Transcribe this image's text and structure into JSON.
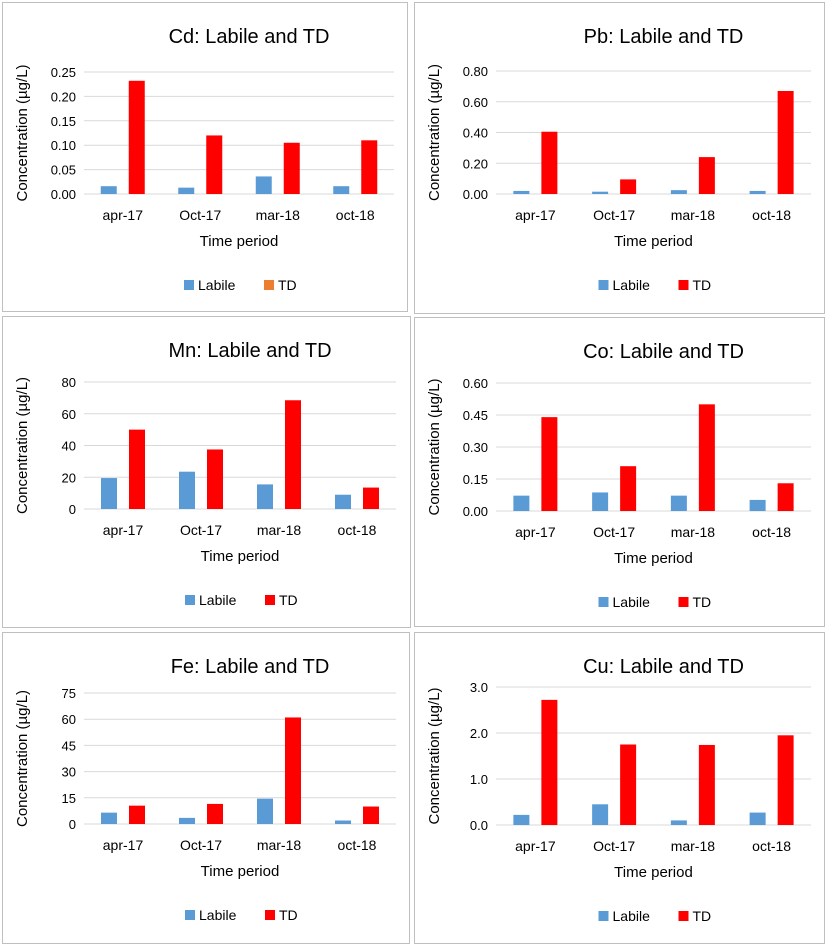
{
  "chart_data": [
    {
      "type": "bar",
      "title": "Cd: Labile and TD",
      "categories": [
        "apr-17",
        "Oct-17",
        "mar-18",
        "oct-18"
      ],
      "series": [
        {
          "name": "Labile",
          "values": [
            0.016,
            0.013,
            0.036,
            0.016
          ]
        },
        {
          "name": "TD",
          "values": [
            0.232,
            0.12,
            0.105,
            0.11
          ]
        }
      ],
      "xlabel": "Time period",
      "ylabel": "Concentration (µg/L)",
      "ylim": [
        0,
        0.25
      ],
      "yticks": [
        "0.00",
        "0.05",
        "0.10",
        "0.15",
        "0.20",
        "0.25"
      ],
      "colors": [
        "#5b9bd5",
        "#ff0000"
      ],
      "legend_colors": [
        "#5b9bd5",
        "#ed7d31"
      ],
      "legend_position": "bottom",
      "grid": true
    },
    {
      "type": "bar",
      "title": "Pb: Labile and TD",
      "categories": [
        "apr-17",
        "Oct-17",
        "mar-18",
        "oct-18"
      ],
      "series": [
        {
          "name": "Labile",
          "values": [
            0.02,
            0.015,
            0.025,
            0.02
          ]
        },
        {
          "name": "TD",
          "values": [
            0.405,
            0.095,
            0.24,
            0.67
          ]
        }
      ],
      "xlabel": "Time period",
      "ylabel": "Concentration (µg/L)",
      "ylim": [
        0,
        0.8
      ],
      "yticks": [
        "0.00",
        "0.20",
        "0.40",
        "0.60",
        "0.80"
      ],
      "colors": [
        "#5b9bd5",
        "#ff0000"
      ],
      "legend_colors": [
        "#5b9bd5",
        "#ff0000"
      ],
      "legend_position": "bottom",
      "grid": true
    },
    {
      "type": "bar",
      "title": "Mn: Labile and TD",
      "categories": [
        "apr-17",
        "Oct-17",
        "mar-18",
        "oct-18"
      ],
      "series": [
        {
          "name": "Labile",
          "values": [
            19.5,
            23.5,
            15.5,
            9
          ]
        },
        {
          "name": "TD",
          "values": [
            50,
            37.5,
            68.5,
            13.5
          ]
        }
      ],
      "xlabel": "Time period",
      "ylabel": "Concentration (µg/L)",
      "ylim": [
        0,
        80
      ],
      "yticks": [
        "0",
        "20",
        "40",
        "60",
        "80"
      ],
      "colors": [
        "#5b9bd5",
        "#ff0000"
      ],
      "legend_colors": [
        "#5b9bd5",
        "#ff0000"
      ],
      "legend_position": "bottom",
      "grid": true
    },
    {
      "type": "bar",
      "title": "Co: Labile and TD",
      "categories": [
        "apr-17",
        "Oct-17",
        "mar-18",
        "oct-18"
      ],
      "series": [
        {
          "name": "Labile",
          "values": [
            0.072,
            0.087,
            0.072,
            0.052
          ]
        },
        {
          "name": "TD",
          "values": [
            0.44,
            0.21,
            0.5,
            0.13
          ]
        }
      ],
      "xlabel": "Time period",
      "ylabel": "Concentration (µg/L)",
      "ylim": [
        0,
        0.6
      ],
      "yticks": [
        "0.00",
        "0.15",
        "0.30",
        "0.45",
        "0.60"
      ],
      "colors": [
        "#5b9bd5",
        "#ff0000"
      ],
      "legend_colors": [
        "#5b9bd5",
        "#ff0000"
      ],
      "legend_position": "bottom",
      "grid": true
    },
    {
      "type": "bar",
      "title": "Fe: Labile and TD",
      "categories": [
        "apr-17",
        "Oct-17",
        "mar-18",
        "oct-18"
      ],
      "series": [
        {
          "name": "Labile",
          "values": [
            6.5,
            3.5,
            14.5,
            2
          ]
        },
        {
          "name": "TD",
          "values": [
            10.5,
            11.5,
            61,
            10
          ]
        }
      ],
      "xlabel": "Time period",
      "ylabel": "Concentration (µg/L)",
      "ylim": [
        0,
        75
      ],
      "yticks": [
        "0",
        "15",
        "30",
        "45",
        "60",
        "75"
      ],
      "colors": [
        "#5b9bd5",
        "#ff0000"
      ],
      "legend_colors": [
        "#5b9bd5",
        "#ff0000"
      ],
      "legend_position": "bottom",
      "grid": true
    },
    {
      "type": "bar",
      "title": "Cu: Labile and TD",
      "categories": [
        "apr-17",
        "Oct-17",
        "mar-18",
        "oct-18"
      ],
      "series": [
        {
          "name": "Labile",
          "values": [
            0.22,
            0.45,
            0.1,
            0.27
          ]
        },
        {
          "name": "TD",
          "values": [
            2.72,
            1.75,
            1.74,
            1.95
          ]
        }
      ],
      "xlabel": "Time period",
      "ylabel": "Concentration (µg/L)",
      "ylim": [
        0,
        3
      ],
      "yticks": [
        "0.0",
        "1.0",
        "2.0",
        "3.0"
      ],
      "colors": [
        "#5b9bd5",
        "#ff0000"
      ],
      "legend_colors": [
        "#5b9bd5",
        "#ff0000"
      ],
      "legend_position": "bottom",
      "grid": true
    }
  ]
}
